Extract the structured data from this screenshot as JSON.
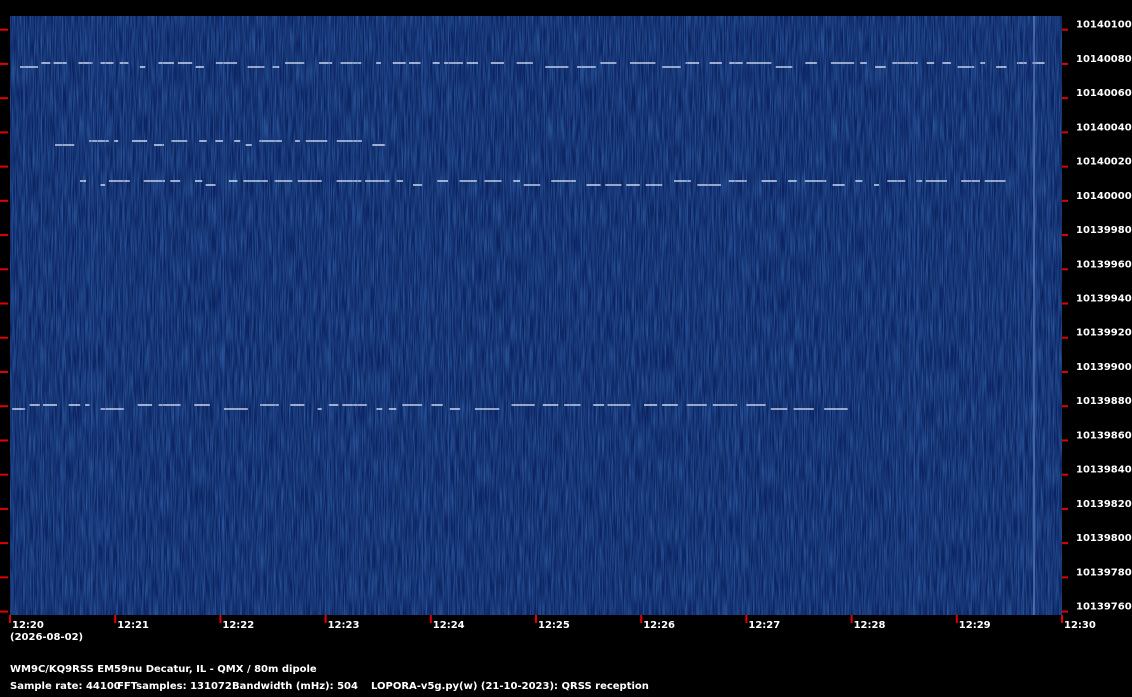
{
  "chart_data": {
    "type": "spectrogram",
    "categories": [
      "12:20",
      "12:21",
      "12:22",
      "12:23",
      "12:24",
      "12:25",
      "12:26",
      "12:27",
      "12:28",
      "12:29",
      "12:30"
    ],
    "date_label": "(2026-08-02)",
    "ylim": [
      10139758,
      10140108
    ],
    "yticks": [
      10140100,
      10140080,
      10140060,
      10140040,
      10140020,
      10140000,
      10139980,
      10139960,
      10139940,
      10139920,
      10139900,
      10139880,
      10139860,
      10139840,
      10139820,
      10139800,
      10139780,
      10139760
    ],
    "tick_color": "#e00000",
    "background_color": "#0c2462",
    "station": "WM9C/KQ9RSS EM59nu Decatur, IL - QMX / 80m dipole",
    "sample_rate": "Sample rate: 44100",
    "fft_samples": "FFTsamples: 131072",
    "bandwidth": "Bandwidth (mHz): 504",
    "software": "LOPORA-v5g.py(w) (21-10-2023): QRSS reception"
  }
}
